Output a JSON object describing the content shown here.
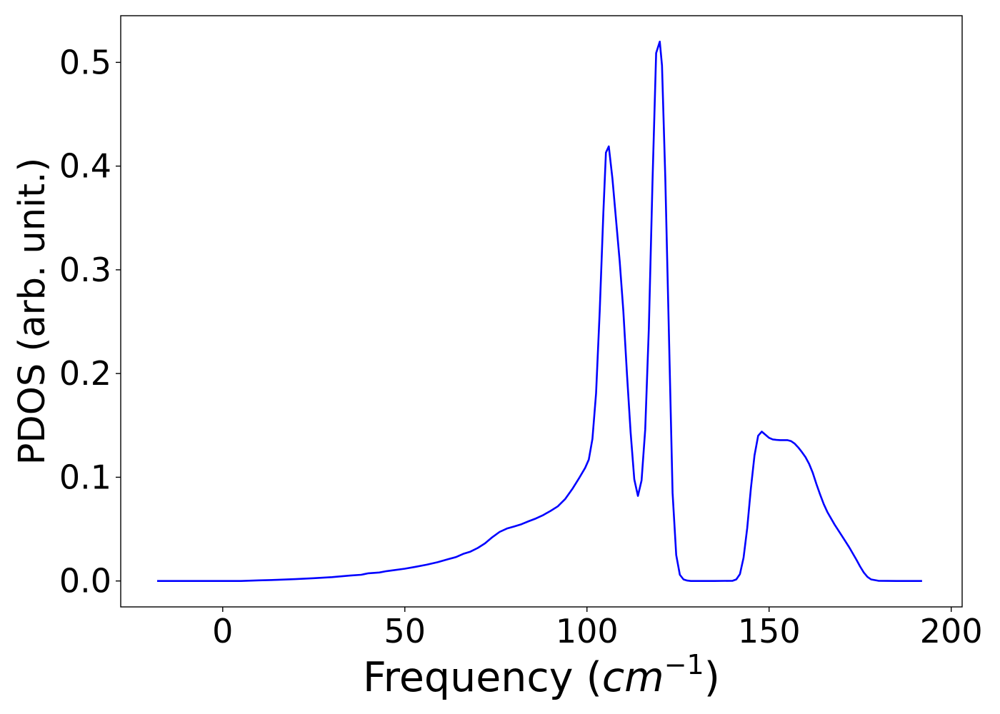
{
  "chart_data": {
    "type": "line",
    "title": "",
    "xlabel": "Frequency",
    "xlabel_unit": "cm",
    "xlabel_unit_exp": "−1",
    "ylabel": "PDOS (arb. unit.)",
    "xlim": [
      -28,
      203
    ],
    "ylim": [
      -0.025,
      0.545
    ],
    "x_ticks": [
      0,
      50,
      100,
      150,
      200
    ],
    "x_tick_labels": [
      "0",
      "50",
      "100",
      "150",
      "200"
    ],
    "y_ticks": [
      0.0,
      0.1,
      0.2,
      0.3,
      0.4,
      0.5
    ],
    "y_tick_labels": [
      "0.0",
      "0.1",
      "0.2",
      "0.3",
      "0.4",
      "0.5"
    ],
    "grid": false,
    "legend": "none",
    "series": [
      {
        "color": "#0000ff",
        "x": [
          -18,
          0,
          5,
          10,
          15,
          20,
          25,
          30,
          35,
          38,
          40,
          43,
          45,
          47,
          50,
          53,
          56,
          59,
          62,
          64,
          66,
          68,
          70,
          72,
          74,
          76,
          78,
          80,
          82,
          84,
          86,
          88,
          90,
          92,
          94,
          96,
          98,
          99.5,
          100.5,
          101.5,
          102.5,
          103.5,
          104.5,
          105.2,
          106,
          107,
          108,
          109,
          110,
          111,
          112,
          113,
          114,
          115,
          116,
          117,
          118,
          119,
          120,
          120.6,
          121.5,
          122.5,
          123.5,
          124.5,
          125.5,
          126.5,
          127.5,
          128.5,
          130,
          135,
          140,
          141,
          142,
          143,
          144,
          145,
          146,
          147,
          148,
          149,
          150,
          151,
          152,
          153,
          154,
          155,
          156,
          157,
          158,
          159,
          160,
          161,
          162,
          163,
          164,
          165,
          166,
          168,
          170,
          172,
          174,
          175,
          176,
          177,
          178,
          180,
          185,
          192
        ],
        "y": [
          0.0,
          0.0,
          0.0,
          0.0006,
          0.0011,
          0.0018,
          0.0027,
          0.0037,
          0.0052,
          0.006,
          0.0074,
          0.0082,
          0.0095,
          0.0104,
          0.0118,
          0.0137,
          0.0157,
          0.0181,
          0.0211,
          0.023,
          0.0261,
          0.0283,
          0.0318,
          0.0363,
          0.0422,
          0.0473,
          0.0505,
          0.0525,
          0.0547,
          0.0576,
          0.0603,
          0.0635,
          0.0675,
          0.0719,
          0.0789,
          0.0887,
          0.1,
          0.109,
          0.117,
          0.137,
          0.181,
          0.26,
          0.355,
          0.413,
          0.419,
          0.388,
          0.348,
          0.308,
          0.26,
          0.199,
          0.143,
          0.098,
          0.082,
          0.097,
          0.146,
          0.244,
          0.385,
          0.509,
          0.52,
          0.497,
          0.389,
          0.238,
          0.085,
          0.025,
          0.006,
          0.0015,
          0.0004,
          0.0,
          0.0,
          0.0,
          0.0002,
          0.0015,
          0.0066,
          0.0225,
          0.051,
          0.089,
          0.121,
          0.14,
          0.144,
          0.141,
          0.138,
          0.1365,
          0.136,
          0.1358,
          0.1358,
          0.1358,
          0.1349,
          0.1325,
          0.1288,
          0.1243,
          0.1194,
          0.1129,
          0.1042,
          0.0934,
          0.0835,
          0.0742,
          0.0665,
          0.0543,
          0.0434,
          0.0325,
          0.0204,
          0.0139,
          0.0082,
          0.004,
          0.0015,
          0.0002,
          0.0,
          0.0
        ]
      }
    ]
  }
}
